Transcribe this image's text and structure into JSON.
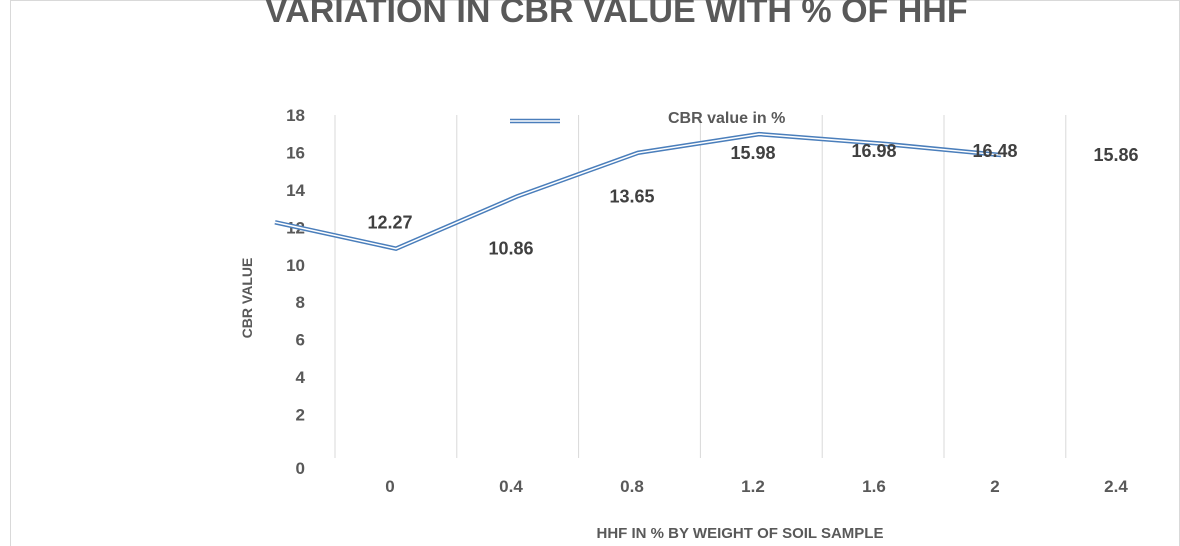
{
  "chart_data": {
    "type": "line",
    "title": "VARIATION IN CBR VALUE WITH % OF HHF",
    "x_label": "HHF IN % BY WEIGHT OF SOIL SAMPLE",
    "y_label": "CBR VALUE",
    "categories": [
      "0",
      "0.4",
      "0.8",
      "1.2",
      "1.6",
      "2",
      "2.4"
    ],
    "series": [
      {
        "name": "CBR value in %",
        "color": "#4a7ebb",
        "values": [
          12.27,
          10.86,
          13.65,
          15.98,
          16.98,
          16.48,
          15.86
        ]
      }
    ],
    "ylim": [
      0,
      18
    ],
    "yticks": [
      0,
      2,
      4,
      6,
      8,
      10,
      12,
      14,
      16,
      18
    ],
    "grid": true
  }
}
